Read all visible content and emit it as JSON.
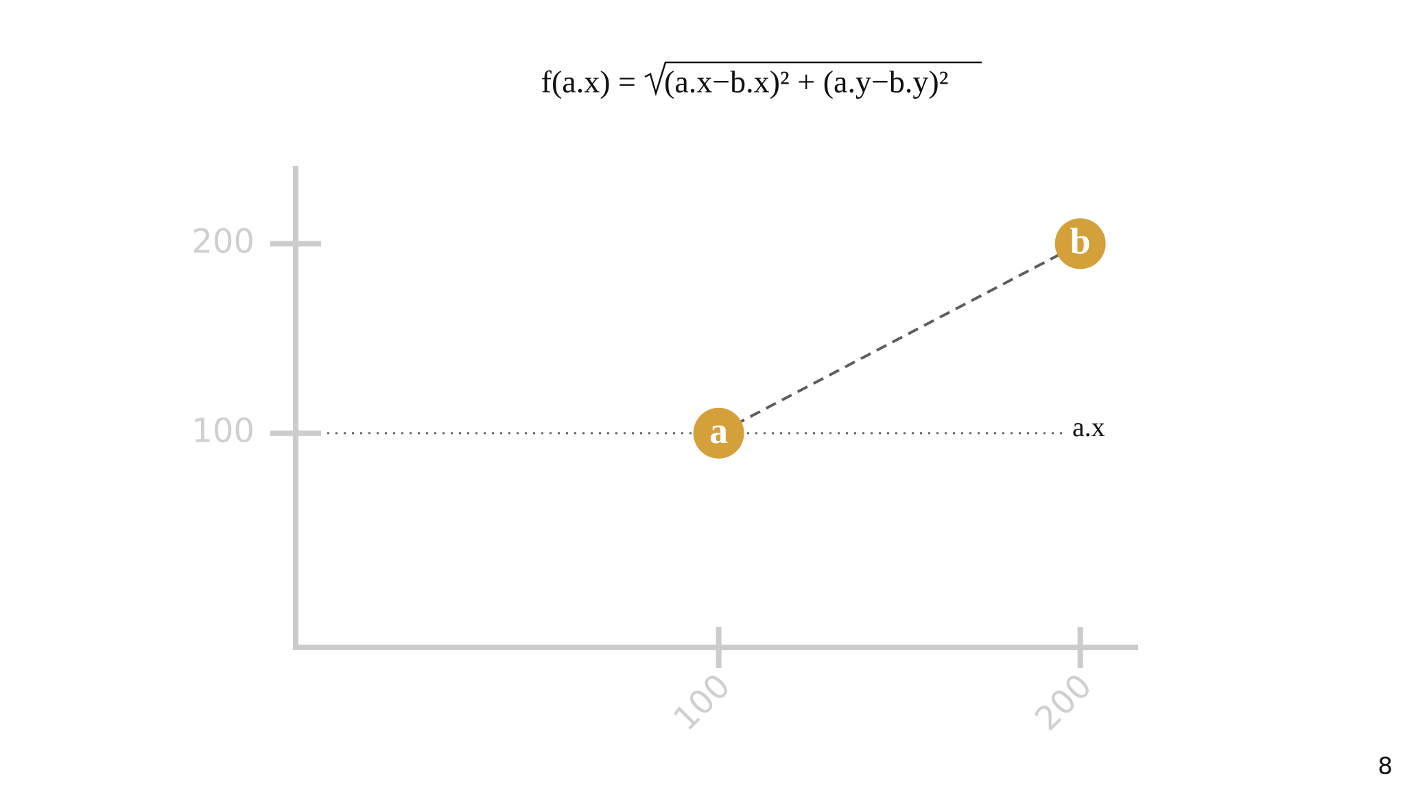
{
  "formula": {
    "lhs": "f(a.x) =",
    "radicand": "(a.x−b.x)² + (a.y−b.y)²"
  },
  "chart_data": {
    "type": "scatter",
    "x": [
      100,
      200
    ],
    "values": [
      100,
      200
    ],
    "point_labels": [
      "a",
      "b"
    ],
    "color": "#d4a03a",
    "xlim": [
      -17,
      216
    ],
    "ylim": [
      -13,
      241
    ],
    "xticks": [
      100,
      200
    ],
    "yticks": [
      100,
      200
    ],
    "annotation": "a.x"
  },
  "page_number": 8
}
